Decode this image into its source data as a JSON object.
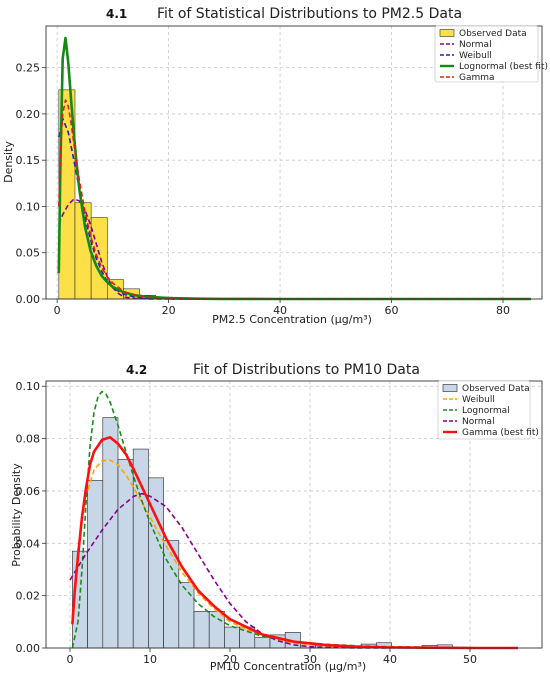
{
  "chart_data": [
    {
      "type": "histogram",
      "panel_label": "4.1",
      "title": "Fit of Statistical Distributions to PM2.5 Data",
      "xlabel": "PM2.5 Concentration (µg/m³)",
      "ylabel": "Density",
      "xlim": [
        -2,
        87
      ],
      "ylim": [
        0,
        0.295
      ],
      "xticks": [
        0,
        20,
        40,
        60,
        80
      ],
      "yticks": [
        0.0,
        0.05,
        0.1,
        0.15,
        0.2,
        0.25
      ],
      "ytick_labels": [
        "0.00",
        "0.05",
        "0.10",
        "0.15",
        "0.20",
        "0.25"
      ],
      "grid": true,
      "legend_position": "top-right",
      "histogram": {
        "name": "Observed Data",
        "fill": "#fde047",
        "edge": "#333333",
        "bin_width": 2.9,
        "bin_start": 0.3,
        "values": [
          0.226,
          0.104,
          0.088,
          0.021,
          0.011,
          0.004,
          0.002,
          0.001,
          0.0005
        ]
      },
      "series": [
        {
          "name": "Normal",
          "color": "#8b008b",
          "dash": "dashed",
          "x": [
            0.3,
            1,
            2,
            3,
            4,
            5,
            6,
            7,
            8,
            9,
            10,
            11,
            12,
            14,
            16,
            20,
            25,
            30,
            40,
            60,
            85
          ],
          "y": [
            0.081,
            0.091,
            0.102,
            0.108,
            0.106,
            0.096,
            0.08,
            0.06,
            0.04,
            0.024,
            0.012,
            0.006,
            0.002,
            0.0005,
            0.0001,
            0,
            0,
            0,
            0,
            0,
            0
          ]
        },
        {
          "name": "Weibull",
          "color": "#1e1ecc",
          "dash": "dashed",
          "x": [
            0.3,
            1,
            2,
            3,
            4,
            5,
            6,
            7,
            8,
            9,
            10,
            12,
            14,
            16,
            20,
            30,
            40,
            60,
            85
          ],
          "y": [
            0.175,
            0.195,
            0.18,
            0.15,
            0.118,
            0.088,
            0.064,
            0.044,
            0.03,
            0.019,
            0.012,
            0.005,
            0.002,
            0.0008,
            0.0001,
            0,
            0,
            0,
            0
          ]
        },
        {
          "name": "Lognormal (best fit)",
          "color": "#138a13",
          "dash": "solid",
          "x": [
            0.3,
            0.6,
            1,
            1.5,
            2,
            2.5,
            3,
            3.5,
            4,
            5,
            6,
            7,
            8,
            9,
            10,
            12,
            14,
            16,
            20,
            25,
            30,
            40,
            60,
            85
          ],
          "y": [
            0.028,
            0.15,
            0.26,
            0.282,
            0.255,
            0.215,
            0.178,
            0.145,
            0.118,
            0.078,
            0.052,
            0.036,
            0.025,
            0.018,
            0.013,
            0.007,
            0.004,
            0.0025,
            0.001,
            0.0003,
            0.0001,
            0,
            0,
            0
          ]
        },
        {
          "name": "Gamma",
          "color": "#e31b1b",
          "dash": "dashed",
          "x": [
            0.3,
            0.6,
            1,
            1.5,
            2,
            2.5,
            3,
            4,
            5,
            6,
            7,
            8,
            9,
            10,
            12,
            14,
            16,
            20,
            25,
            30,
            40,
            60,
            85
          ],
          "y": [
            0.1,
            0.16,
            0.2,
            0.215,
            0.208,
            0.19,
            0.168,
            0.128,
            0.094,
            0.068,
            0.048,
            0.034,
            0.024,
            0.017,
            0.008,
            0.004,
            0.002,
            0.0005,
            0.0001,
            0,
            0,
            0,
            0
          ]
        }
      ]
    },
    {
      "type": "histogram",
      "panel_label": "4.2",
      "title": "Fit of Distributions to PM10 Data",
      "xlabel": "PM10 Concentration (µg/m³)",
      "ylabel": "Probability Density",
      "xlim": [
        -3,
        59
      ],
      "ylim": [
        0,
        0.102
      ],
      "xticks": [
        0,
        10,
        20,
        30,
        40,
        50
      ],
      "yticks": [
        0.0,
        0.02,
        0.04,
        0.06,
        0.08,
        0.1
      ],
      "ytick_labels": [
        "0.00",
        "0.02",
        "0.04",
        "0.06",
        "0.08",
        "0.10"
      ],
      "grid": true,
      "legend_position": "top-right",
      "histogram": {
        "name": "Observed Data",
        "fill": "#c8d7e8",
        "edge": "#222222",
        "bin_width": 1.9,
        "bin_start": 0.3,
        "values": [
          0.037,
          0.064,
          0.088,
          0.072,
          0.076,
          0.065,
          0.041,
          0.025,
          0.014,
          0.014,
          0.008,
          0.008,
          0.004,
          0.005,
          0.006,
          0.002,
          0.001,
          0.001,
          0.0008,
          0.0015,
          0.002,
          0.0005,
          0.0003,
          0.001,
          0.0012,
          0.0003,
          0.0002
        ]
      },
      "series": [
        {
          "name": "Weibull",
          "color": "#ffa500",
          "dash": "dashed",
          "x": [
            0.3,
            1,
            2,
            3,
            4,
            5,
            6,
            7,
            8,
            10,
            12,
            14,
            16,
            18,
            20,
            24,
            28,
            32,
            36,
            40,
            45,
            50,
            56
          ],
          "y": [
            0.012,
            0.038,
            0.058,
            0.068,
            0.0715,
            0.0718,
            0.07,
            0.066,
            0.061,
            0.05,
            0.039,
            0.029,
            0.021,
            0.015,
            0.01,
            0.0045,
            0.0019,
            0.0007,
            0.0003,
            0.0001,
            0,
            0,
            0
          ]
        },
        {
          "name": "Lognormal",
          "color": "#1a8a1a",
          "dash": "dashed",
          "x": [
            0.3,
            1,
            1.5,
            2,
            2.5,
            3,
            3.5,
            4,
            4.5,
            5,
            6,
            7,
            8,
            9,
            10,
            12,
            14,
            16,
            18,
            20,
            24,
            28,
            32,
            36,
            40,
            45,
            50,
            56
          ],
          "y": [
            0.0,
            0.01,
            0.03,
            0.055,
            0.077,
            0.09,
            0.096,
            0.098,
            0.097,
            0.094,
            0.085,
            0.075,
            0.065,
            0.056,
            0.048,
            0.034,
            0.024,
            0.017,
            0.012,
            0.0085,
            0.0045,
            0.0025,
            0.0014,
            0.0008,
            0.0005,
            0.0003,
            0.0001,
            0.0
          ]
        },
        {
          "name": "Normal",
          "color": "#8b008b",
          "dash": "dashed",
          "x": [
            0,
            2,
            4,
            6,
            8,
            9,
            10,
            12,
            14,
            16,
            18,
            20,
            22,
            24,
            26,
            28,
            30,
            32,
            36,
            40
          ],
          "y": [
            0.026,
            0.036,
            0.045,
            0.053,
            0.058,
            0.059,
            0.058,
            0.054,
            0.046,
            0.036,
            0.026,
            0.017,
            0.01,
            0.0055,
            0.0027,
            0.0012,
            0.0005,
            0.0002,
            0,
            0
          ]
        },
        {
          "name": "Gamma (best fit)",
          "color": "#ff1010",
          "dash": "solid",
          "x": [
            0.3,
            0.6,
            1,
            1.5,
            2,
            2.5,
            3,
            4,
            5,
            6,
            7,
            8,
            10,
            12,
            14,
            16,
            18,
            20,
            24,
            28,
            32,
            36,
            40,
            45,
            50,
            56
          ],
          "y": [
            0.009,
            0.022,
            0.035,
            0.05,
            0.061,
            0.07,
            0.075,
            0.0795,
            0.0805,
            0.078,
            0.074,
            0.068,
            0.055,
            0.042,
            0.031,
            0.022,
            0.016,
            0.011,
            0.0052,
            0.0024,
            0.0011,
            0.0005,
            0.0002,
            0.0001,
            0,
            0
          ]
        }
      ]
    }
  ]
}
